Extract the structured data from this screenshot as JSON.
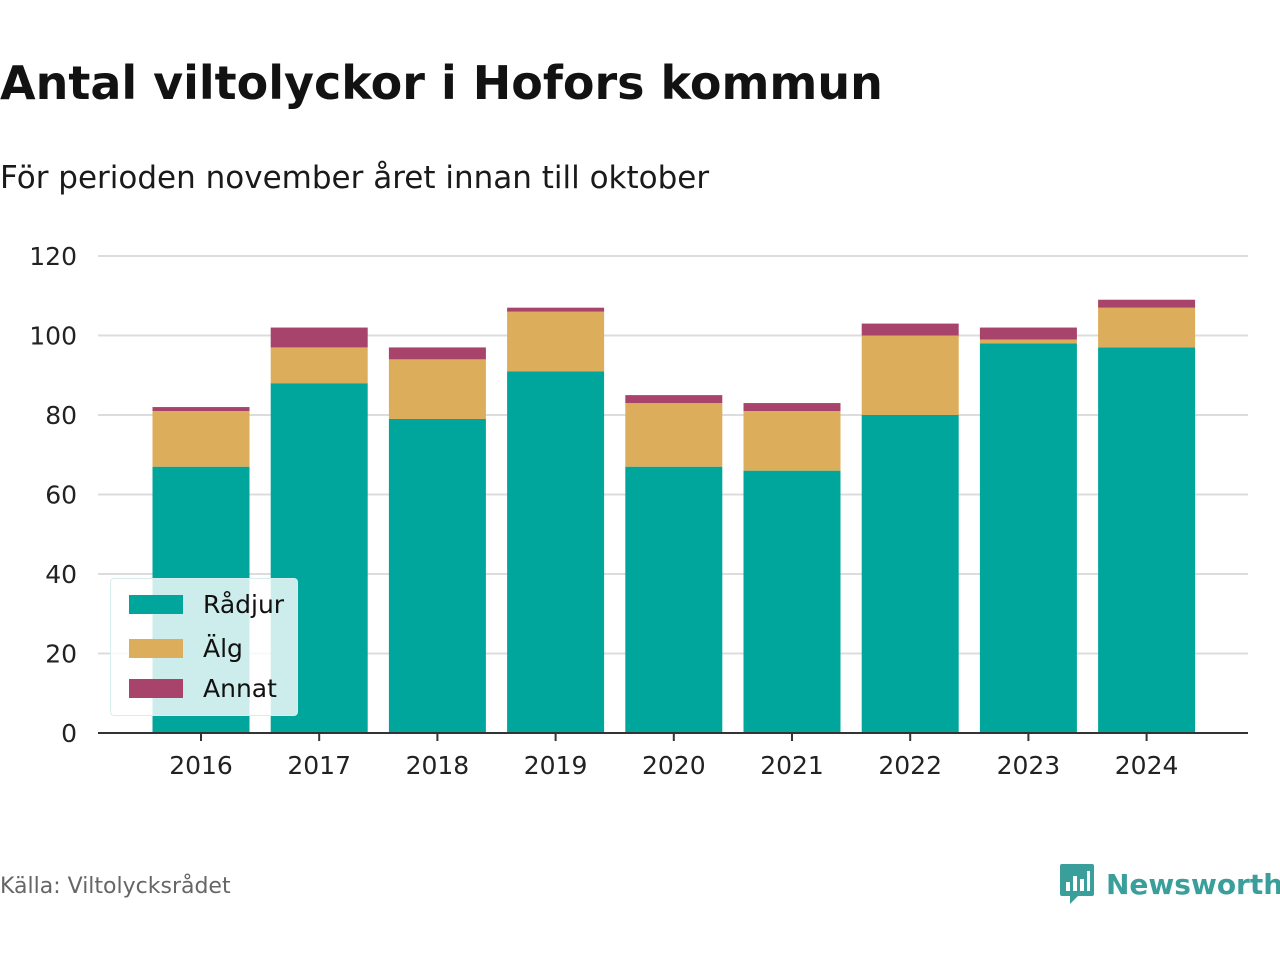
{
  "title": "Antal viltolyckor i Hofors kommun",
  "subtitle": "För perioden november året innan till oktober",
  "source": "Källa: Viltolycksrådet",
  "brand": {
    "name": "Newsworthy",
    "icon": "newsworthy-logo-icon",
    "color": "#3a9e9b"
  },
  "legend": {
    "placement": "bottom-left",
    "items": [
      {
        "label": "Rådjur",
        "color": "#00a69c"
      },
      {
        "label": "Älg",
        "color": "#dcad5a"
      },
      {
        "label": "Annat",
        "color": "#a8436b"
      }
    ]
  },
  "chart_data": {
    "type": "bar",
    "stacked": true,
    "title": "Antal viltolyckor i Hofors kommun",
    "subtitle": "För perioden november året innan till oktober",
    "xlabel": "",
    "ylabel": "",
    "categories": [
      "2016",
      "2017",
      "2018",
      "2019",
      "2020",
      "2021",
      "2022",
      "2023",
      "2024"
    ],
    "series": [
      {
        "name": "Rådjur",
        "color": "#00a69c",
        "values": [
          67,
          88,
          79,
          91,
          67,
          66,
          80,
          98,
          97
        ]
      },
      {
        "name": "Älg",
        "color": "#dcad5a",
        "values": [
          14,
          9,
          15,
          15,
          16,
          15,
          20,
          1,
          10
        ]
      },
      {
        "name": "Annat",
        "color": "#a8436b",
        "values": [
          1,
          5,
          3,
          1,
          2,
          2,
          3,
          3,
          2
        ]
      }
    ],
    "ylim": [
      0,
      120
    ],
    "yticks": [
      0,
      20,
      40,
      60,
      80,
      100,
      120
    ],
    "grid": true,
    "legend_placement": "bottom-left"
  }
}
